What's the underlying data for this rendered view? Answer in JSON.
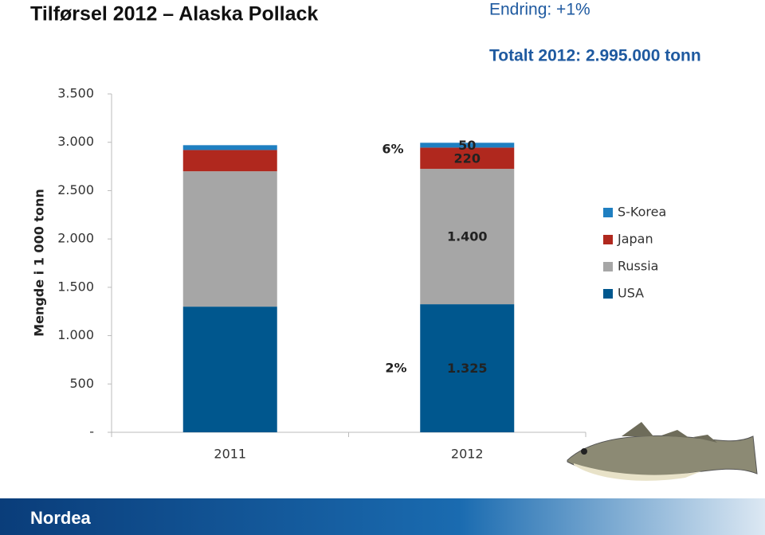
{
  "header": {
    "title": "Tilførsel 2012 – Alaska Pollack",
    "change": "Endring: +1%",
    "total": "Totalt 2012: 2.995.000 tonn"
  },
  "chart_data": {
    "type": "stacked-bar",
    "y_label": "Mengde i 1 000 tonn",
    "categories": [
      "2011",
      "2012"
    ],
    "series": [
      {
        "name": "USA",
        "color": "#00578e",
        "values": [
          1300,
          1325
        ],
        "value_labels": [
          null,
          "1.325"
        ]
      },
      {
        "name": "Russia",
        "color": "#a6a6a6",
        "values": [
          1400,
          1400
        ],
        "value_labels": [
          null,
          "1.400"
        ]
      },
      {
        "name": "Japan",
        "color": "#b0281e",
        "values": [
          220,
          220
        ],
        "value_labels": [
          null,
          "220"
        ]
      },
      {
        "name": "S-Korea",
        "color": "#1f7fc1",
        "values": [
          50,
          50
        ],
        "value_labels": [
          null,
          "50"
        ]
      }
    ],
    "ylim": [
      0,
      3500
    ],
    "yticks": [
      {
        "value": 0,
        "label": "-"
      },
      500,
      {
        "value": 1000,
        "label": "1.000"
      },
      {
        "value": 1500,
        "label": "1.500"
      },
      {
        "value": 2000,
        "label": "2.000"
      },
      {
        "value": 2500,
        "label": "2.500"
      },
      {
        "value": 3000,
        "label": "3.000"
      },
      {
        "value": 3500,
        "label": "3.500"
      }
    ],
    "annotations": [
      "6%",
      "2%"
    ],
    "legend": "right"
  },
  "footer": {
    "logo": "Nordea"
  }
}
